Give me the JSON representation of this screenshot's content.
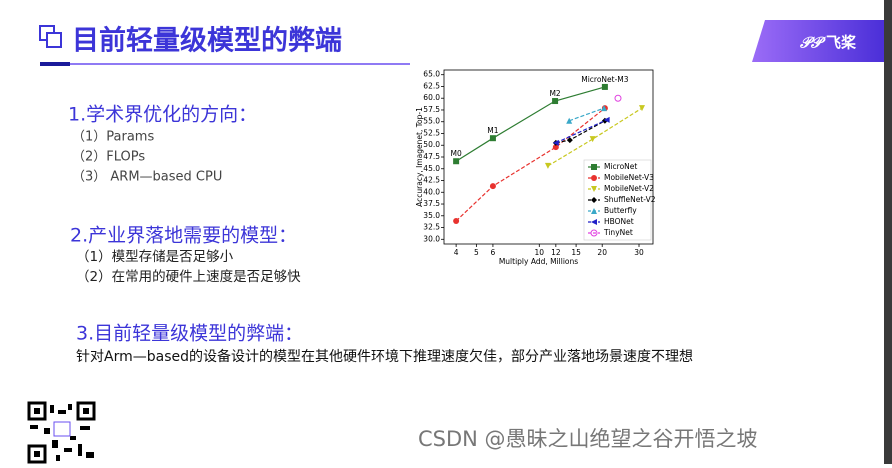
{
  "header": {
    "title": "目前轻量级模型的弊端",
    "logo": "飞桨"
  },
  "sections": [
    {
      "heading": "1.学术界优化的方向：",
      "items": [
        "（1）Params",
        "（2）FLOPs",
        "（3） ARM—based CPU"
      ]
    },
    {
      "heading": "2.产业界落地需要的模型：",
      "items": [
        "（1）模型存储是否足够小",
        "（2）在常用的硬件上速度是否足够快"
      ]
    },
    {
      "heading": "3.目前轻量级模型的弊端：",
      "items": [
        "针对Arm—based的设备设计的模型在其他硬件环境下推理速度欠佳，部分产业落地场景速度不理想"
      ]
    }
  ],
  "watermark": "CSDN @愚昧之山绝望之谷开悟之坡",
  "chart_data": {
    "type": "line",
    "xlabel": "Multiply Add, Millions",
    "ylabel": "Accuracy, Imagenet, Top-1",
    "xscale": "log",
    "xlim": [
      3.5,
      35
    ],
    "xticks": [
      4,
      5,
      6,
      10,
      12,
      15,
      20,
      30
    ],
    "ylim": [
      29,
      66
    ],
    "yticks": [
      {
        "value": 30,
        "label": "30.0"
      },
      32.5,
      {
        "value": 35,
        "label": "35.0"
      },
      37.5,
      {
        "value": 40,
        "label": "40.0"
      },
      42.5,
      {
        "value": 45,
        "label": "45.0"
      },
      47.5,
      {
        "value": 50,
        "label": "50.0"
      },
      52.5,
      {
        "value": 55,
        "label": "55.0"
      },
      57.5,
      {
        "value": 60,
        "label": "60.0"
      },
      62.5,
      {
        "value": 65,
        "label": "65.0"
      }
    ],
    "series": [
      {
        "name": "MicroNet",
        "color": "#2e7d32",
        "marker": "square",
        "linestyle": "solid",
        "x": [
          4,
          6,
          11.9,
          20.6
        ],
        "values": [
          46.6,
          51.5,
          59.4,
          62.4
        ],
        "point_labels": [
          "M0",
          "M1",
          "M2",
          "MicroNet-M3"
        ]
      },
      {
        "name": "MobileNet-V3",
        "color": "#e8322e",
        "marker": "circle",
        "linestyle": "dashed",
        "x": [
          4,
          6,
          12,
          20.6
        ],
        "values": [
          33.9,
          41.3,
          49.6,
          57.9
        ]
      },
      {
        "name": "MobileNet-V2",
        "color": "#c8c820",
        "marker": "triangle-down",
        "linestyle": "dashed",
        "x": [
          11,
          18,
          31
        ],
        "values": [
          45.6,
          51.3,
          57.9
        ]
      },
      {
        "name": "ShuffleNet-V2",
        "color": "#000000",
        "marker": "diamond",
        "linestyle": "dashed",
        "x": [
          12,
          14,
          20.6
        ],
        "values": [
          50.5,
          51.1,
          55.2
        ]
      },
      {
        "name": "Butterfly",
        "color": "#3aa8c8",
        "marker": "triangle-up",
        "linestyle": "dashed",
        "x": [
          13.9,
          20.4
        ],
        "values": [
          55.2,
          57.9
        ]
      },
      {
        "name": "HBONet",
        "color": "#2020c8",
        "marker": "triangle-left",
        "linestyle": "dashed",
        "x": [
          12,
          21
        ],
        "values": [
          50.5,
          55.4
        ]
      },
      {
        "name": "TinyNet",
        "color": "#e040e0",
        "marker": "circle-open",
        "linestyle": "dashed",
        "x": [
          23.8
        ],
        "values": [
          60.0
        ]
      }
    ]
  }
}
